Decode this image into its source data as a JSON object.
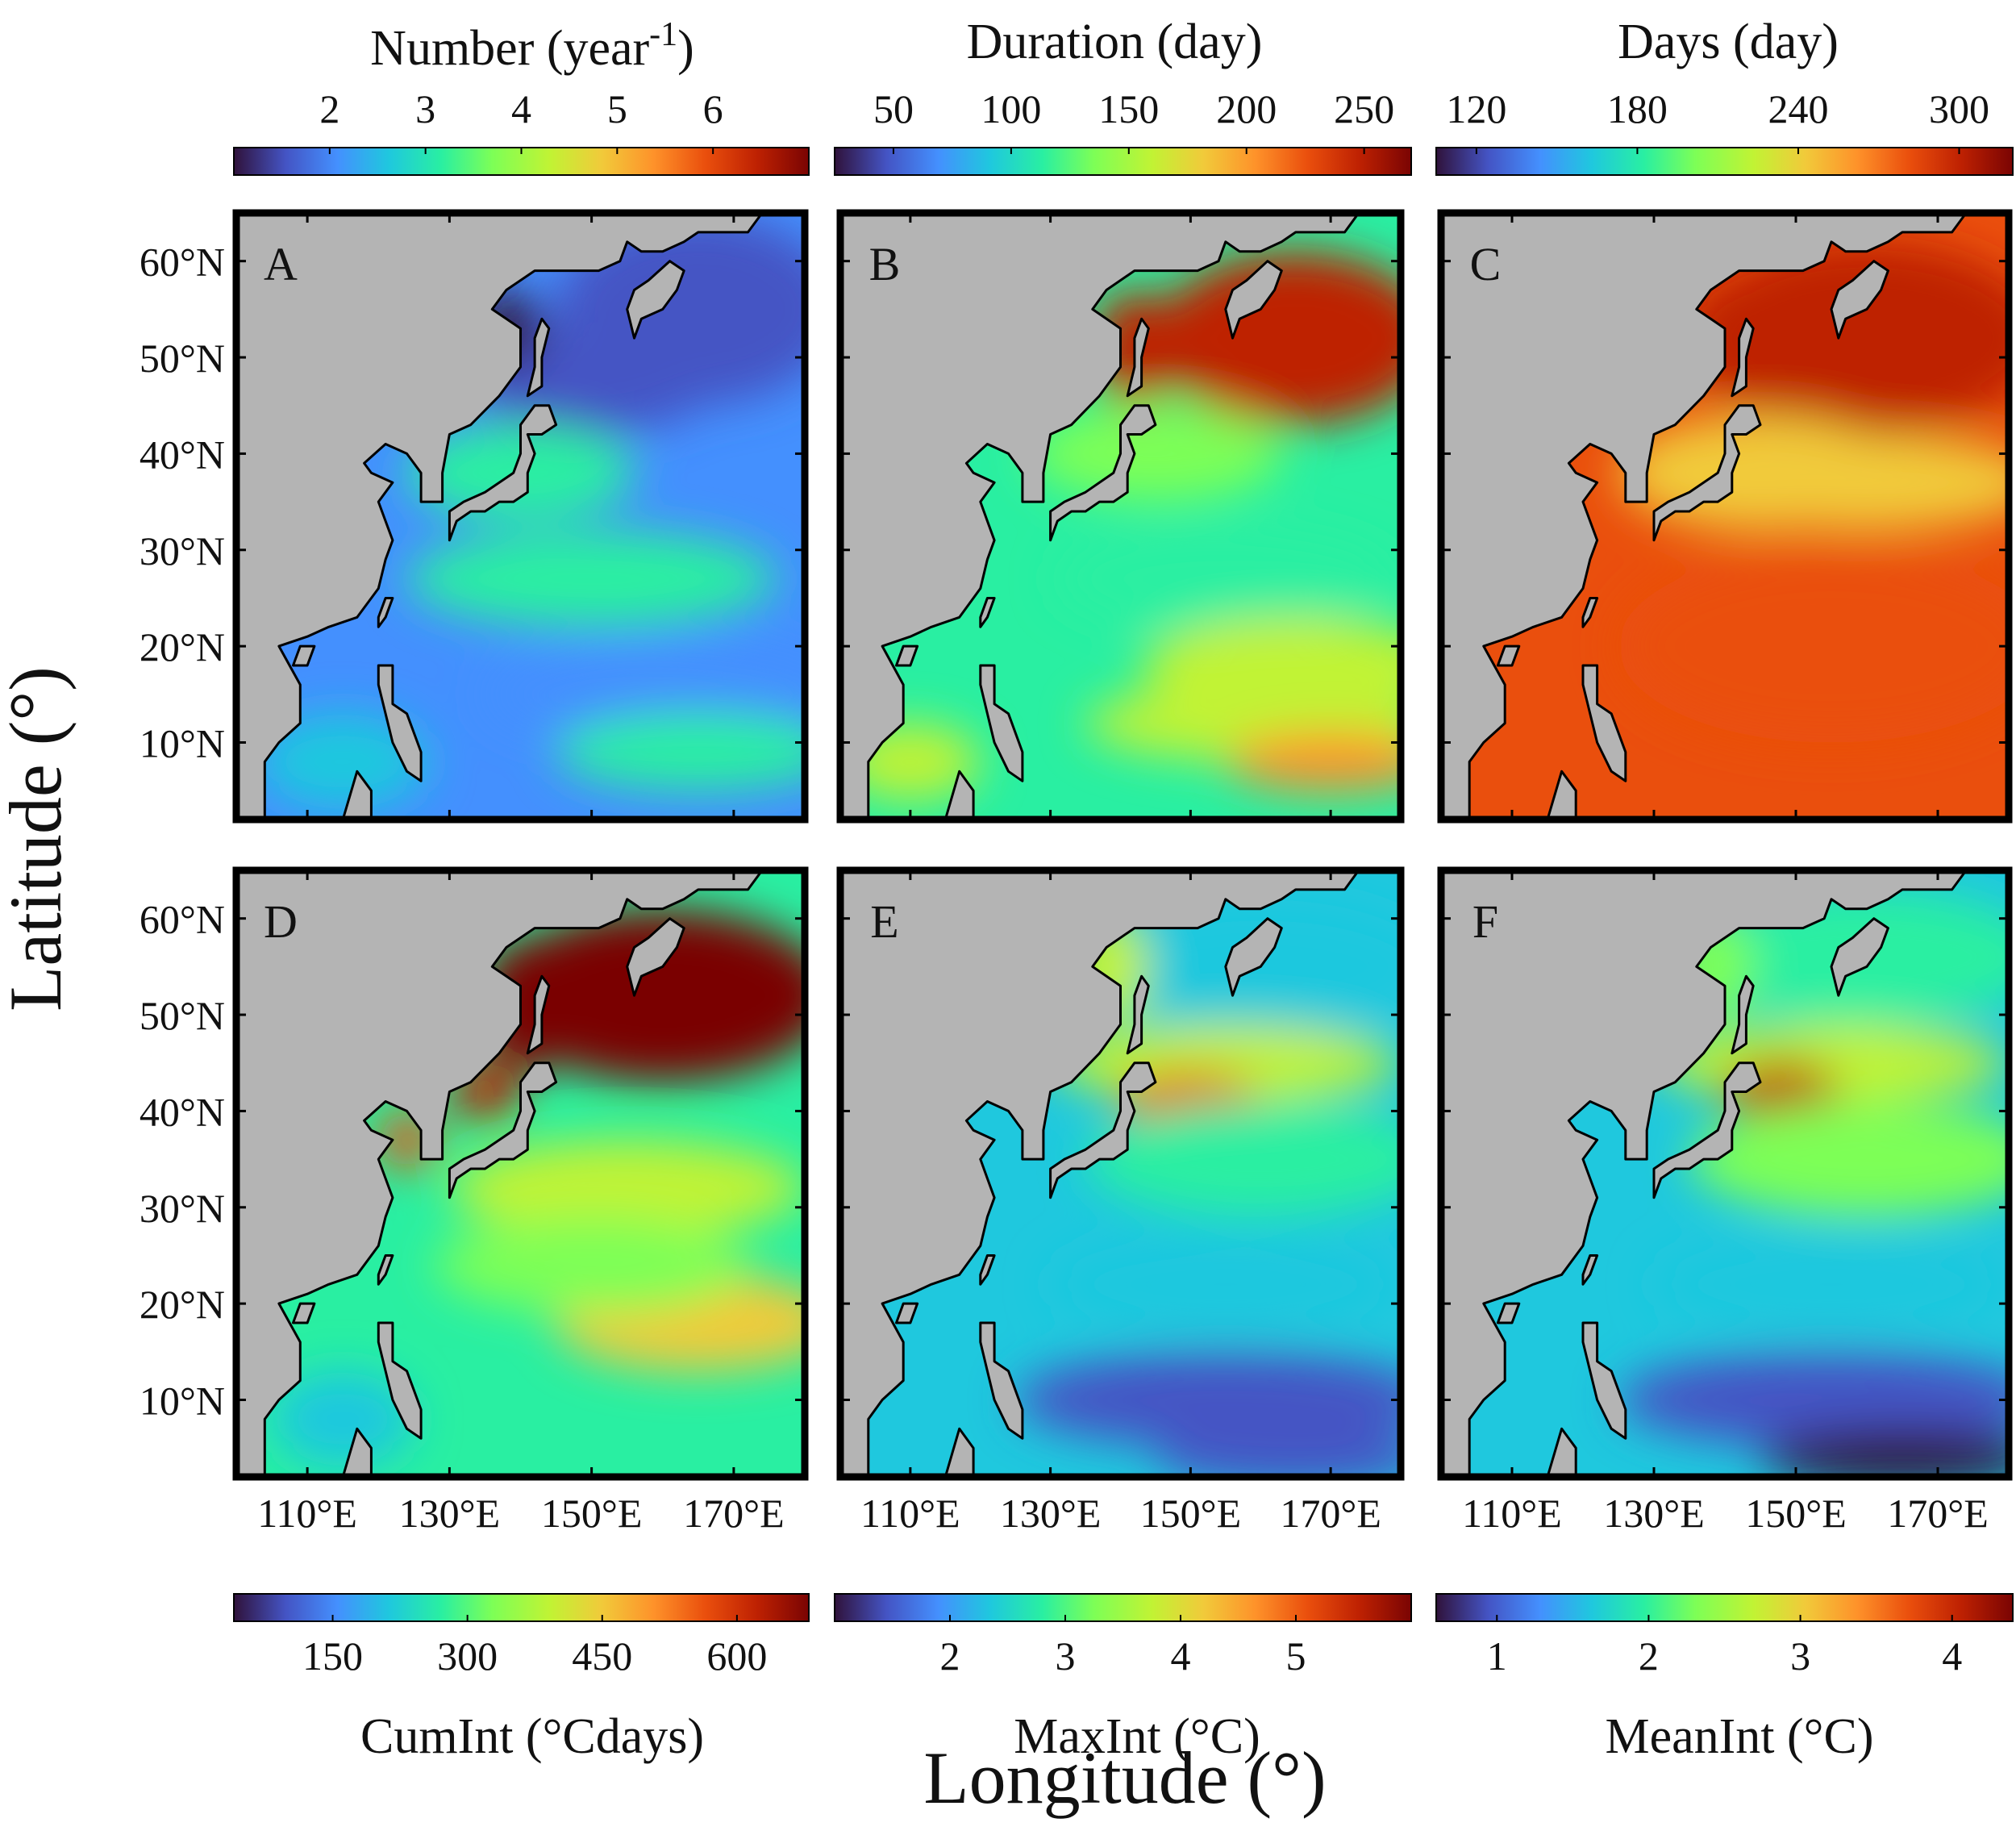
{
  "figure": {
    "x_axis_label": "Longitude (°)",
    "y_axis_label": "Latitude (°)"
  },
  "colorbars": {
    "number": {
      "title": "Number (year",
      "title_exponent": "-1",
      "title_close": ")",
      "ticks": [
        "2",
        "3",
        "4",
        "5",
        "6"
      ],
      "tick_values": [
        2,
        3,
        4,
        5,
        6
      ],
      "range": [
        1.0,
        7.0
      ]
    },
    "duration": {
      "title": "Duration (day)",
      "ticks": [
        "50",
        "100",
        "150",
        "200",
        "250"
      ],
      "tick_values": [
        50,
        100,
        150,
        200,
        250
      ],
      "range": [
        25,
        270
      ]
    },
    "days": {
      "title": "Days (day)",
      "ticks": [
        "120",
        "180",
        "240",
        "300"
      ],
      "tick_values": [
        120,
        180,
        240,
        300
      ],
      "range": [
        105,
        320
      ]
    },
    "cumint": {
      "title": "CumInt (°Cdays)",
      "ticks": [
        "150",
        "300",
        "450",
        "600"
      ],
      "tick_values": [
        150,
        300,
        450,
        600
      ],
      "range": [
        40,
        680
      ]
    },
    "maxint": {
      "title": "MaxInt (°C)",
      "ticks": [
        "2",
        "3",
        "4",
        "5"
      ],
      "tick_values": [
        2,
        3,
        4,
        5
      ],
      "range": [
        1.0,
        6.0
      ]
    },
    "meanint": {
      "title": "MeanInt (°C)",
      "ticks": [
        "1",
        "2",
        "3",
        "4"
      ],
      "tick_values": [
        1,
        2,
        3,
        4
      ],
      "range": [
        0.6,
        4.4
      ]
    }
  },
  "panels": [
    {
      "letter": "A",
      "metric": "Number",
      "colorbar": "number"
    },
    {
      "letter": "B",
      "metric": "Duration",
      "colorbar": "duration"
    },
    {
      "letter": "C",
      "metric": "Days",
      "colorbar": "days"
    },
    {
      "letter": "D",
      "metric": "CumInt",
      "colorbar": "cumint"
    },
    {
      "letter": "E",
      "metric": "MaxInt",
      "colorbar": "maxint"
    },
    {
      "letter": "F",
      "metric": "MeanInt",
      "colorbar": "meanint"
    }
  ],
  "map_extent": {
    "lon": [
      100,
      180
    ],
    "lat": [
      2,
      65
    ]
  },
  "latitude_ticks": [
    "60°N",
    "50°N",
    "40°N",
    "30°N",
    "20°N",
    "10°N"
  ],
  "latitude_tick_values": [
    60,
    50,
    40,
    30,
    20,
    10
  ],
  "longitude_ticks": [
    "110°E",
    "130°E",
    "150°E",
    "170°E"
  ],
  "longitude_tick_values": [
    110,
    130,
    150,
    170
  ],
  "colors": {
    "land": "#b4b4b4",
    "frame": "#000000",
    "colormap": [
      "#30123b",
      "#4454c4",
      "#4490fe",
      "#1fc8de",
      "#29efa2",
      "#7dff56",
      "#c1f334",
      "#f1ca3a",
      "#fe922a",
      "#ea4f0d",
      "#be2102",
      "#7a0403"
    ]
  }
}
